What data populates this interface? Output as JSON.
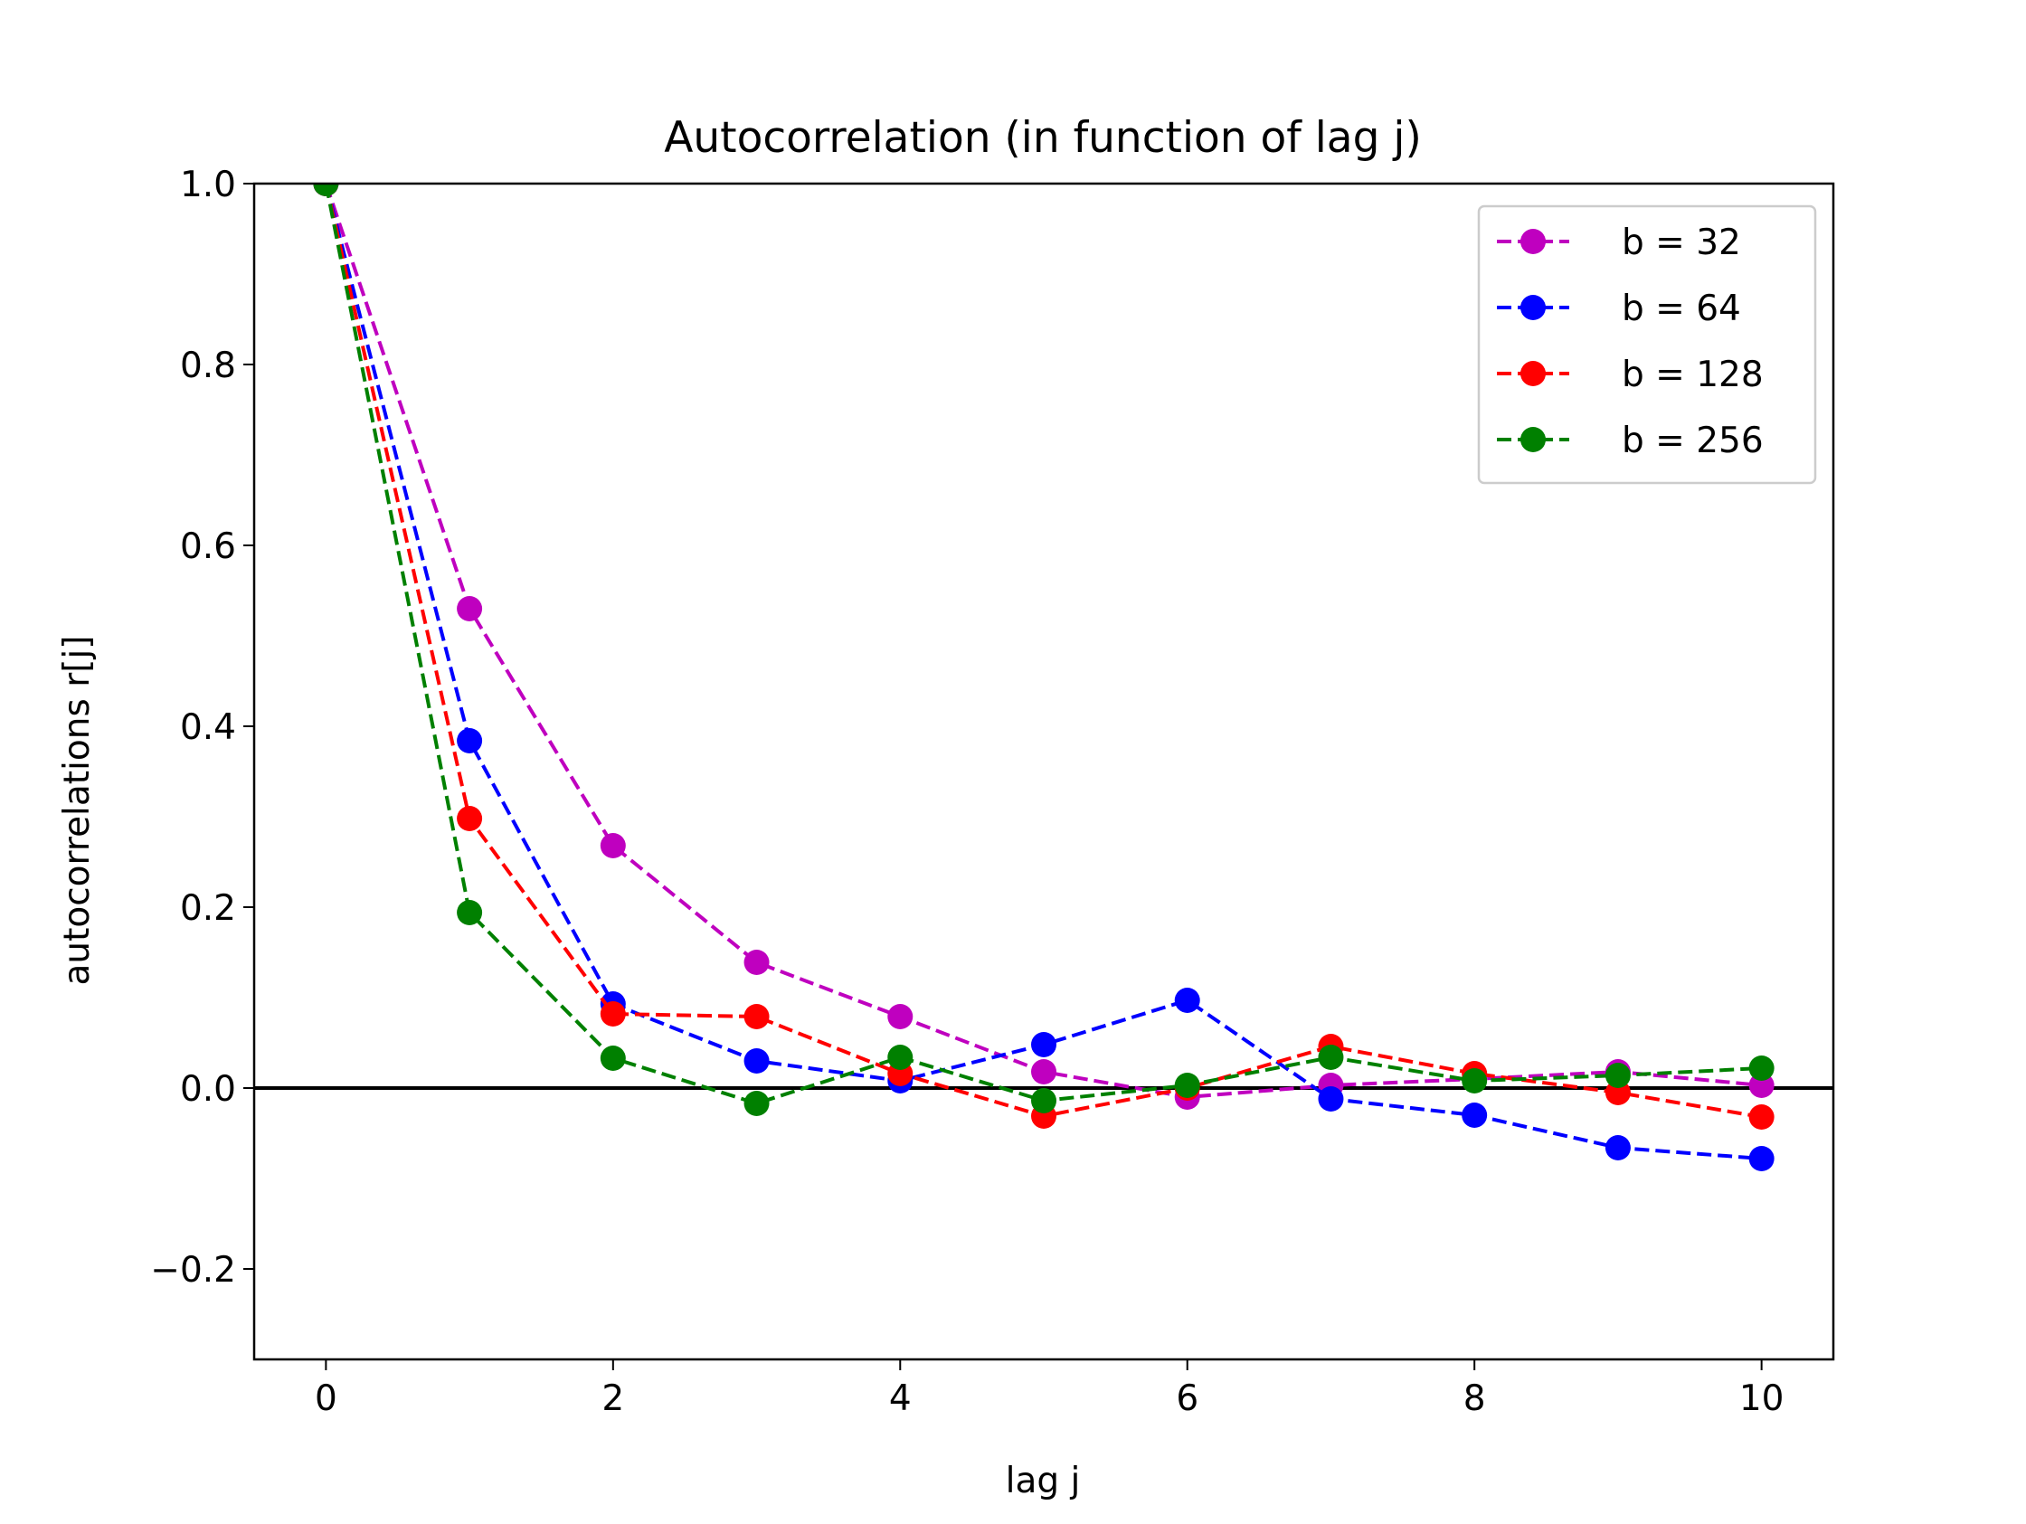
{
  "chart_data": {
    "type": "line",
    "title": "Autocorrelation (in function of lag j)",
    "xlabel": "lag j",
    "ylabel": "autocorrelations r[j]",
    "xlim": [
      -0.5,
      10.5
    ],
    "ylim": [
      -0.3,
      1.0
    ],
    "xticks": [
      0,
      2,
      4,
      6,
      8,
      10
    ],
    "xtick_labels": [
      "0",
      "2",
      "4",
      "6",
      "8",
      "10"
    ],
    "yticks": [
      -0.2,
      0.0,
      0.2,
      0.4,
      0.6,
      0.8,
      1.0
    ],
    "ytick_labels": [
      "−0.2",
      "0.0",
      "0.2",
      "0.4",
      "0.6",
      "0.8",
      "1.0"
    ],
    "grid": false,
    "legend_position": "top-right",
    "reference_line": {
      "y": 0.0,
      "color": "#000000"
    },
    "x": [
      0,
      1,
      2,
      3,
      4,
      5,
      6,
      7,
      8,
      9,
      10
    ],
    "series": [
      {
        "name": "b = 32",
        "color": "#bf00bf",
        "linestyle": "dashed",
        "marker": "circle",
        "values": [
          1.0,
          0.53,
          0.268,
          0.139,
          0.079,
          0.018,
          -0.01,
          0.003,
          0.01,
          0.018,
          0.003
        ]
      },
      {
        "name": "b = 64",
        "color": "#0000ff",
        "linestyle": "dashed",
        "marker": "circle",
        "values": [
          1.0,
          0.384,
          0.093,
          0.03,
          0.008,
          0.048,
          0.097,
          -0.012,
          -0.03,
          -0.066,
          -0.078
        ]
      },
      {
        "name": "b = 128",
        "color": "#ff0000",
        "linestyle": "dashed",
        "marker": "circle",
        "values": [
          1.0,
          0.298,
          0.082,
          0.079,
          0.016,
          -0.031,
          0.0,
          0.046,
          0.016,
          -0.005,
          -0.032
        ]
      },
      {
        "name": "b = 256",
        "color": "#008000",
        "linestyle": "dashed",
        "marker": "circle",
        "values": [
          1.0,
          0.194,
          0.033,
          -0.017,
          0.034,
          -0.014,
          0.003,
          0.034,
          0.008,
          0.014,
          0.022
        ]
      }
    ]
  }
}
